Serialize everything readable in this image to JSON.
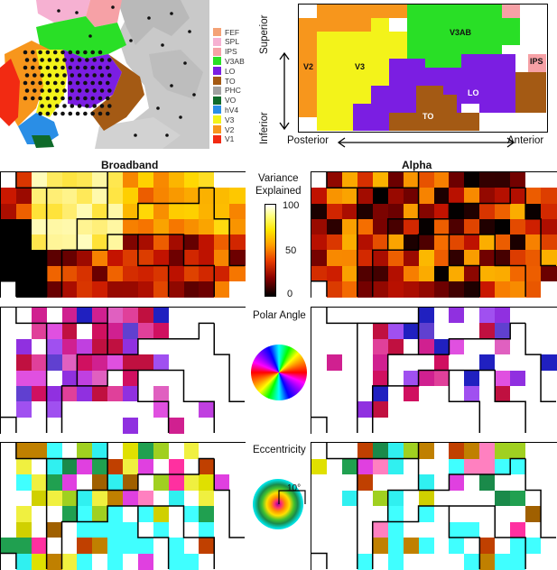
{
  "brain": {
    "legend": [
      {
        "label": "FEF",
        "color": "#f4a276"
      },
      {
        "label": "SPL",
        "color": "#f6b1d2"
      },
      {
        "label": "IPS",
        "color": "#f6a1a6"
      },
      {
        "label": "V3AB",
        "color": "#29df26"
      },
      {
        "label": "LO",
        "color": "#7b1ee2"
      },
      {
        "label": "TO",
        "color": "#a45a14"
      },
      {
        "label": "PHC",
        "color": "#a0a0a0"
      },
      {
        "label": "VO",
        "color": "#0f6a2a"
      },
      {
        "label": "hV4",
        "color": "#2a8ee6"
      },
      {
        "label": "V3",
        "color": "#f3f31a"
      },
      {
        "label": "V2",
        "color": "#f7961c"
      },
      {
        "label": "V1",
        "color": "#f22a12"
      }
    ]
  },
  "region_map": {
    "axis_superior": "Superior",
    "axis_inferior": "Inferior",
    "axis_posterior": "Posterior",
    "axis_anterior": "Anterior",
    "labels": {
      "V2": "V2",
      "V3": "V3",
      "V3AB": "V3AB",
      "IPS": "IPS",
      "LO": "LO",
      "TO": "TO"
    }
  },
  "headers": {
    "left": "Broadband",
    "right": "Alpha"
  },
  "rows": {
    "variance": {
      "title_line1": "Variance",
      "title_line2": "Explained",
      "colorbar_ticks": [
        "100",
        "50",
        "0"
      ]
    },
    "polar": {
      "title": "Polar Angle"
    },
    "eccentricity": {
      "title": "Eccentricity",
      "scale_label": "10°"
    }
  }
}
